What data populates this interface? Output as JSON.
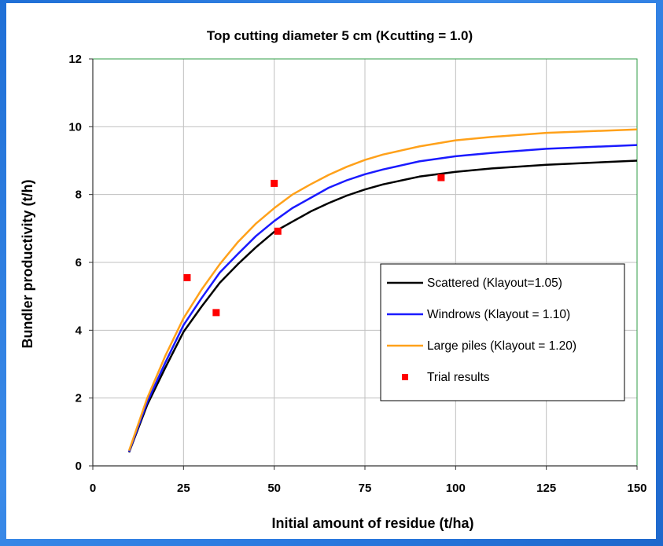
{
  "chart_data": {
    "type": "line",
    "title": "Top cutting diameter 5 cm (Kcutting = 1.0)",
    "xlabel": "Initial amount of residue (t/ha)",
    "ylabel": "Bundler productivity (t/h)",
    "xlim": [
      0,
      150
    ],
    "ylim": [
      0,
      12
    ],
    "xticks": [
      0,
      25,
      50,
      75,
      100,
      125,
      150
    ],
    "yticks": [
      0,
      2,
      4,
      6,
      8,
      10,
      12
    ],
    "grid": true,
    "legend_position": "center-right",
    "series": [
      {
        "name": "Scattered (Klayout=1.05)",
        "kind": "line",
        "color": "#000000",
        "x": [
          10,
          15,
          20,
          25,
          30,
          35,
          40,
          45,
          50,
          55,
          60,
          65,
          70,
          75,
          80,
          90,
          100,
          110,
          125,
          150
        ],
        "y": [
          0.4,
          1.8,
          2.9,
          3.95,
          4.7,
          5.4,
          5.95,
          6.45,
          6.9,
          7.2,
          7.5,
          7.75,
          7.97,
          8.15,
          8.3,
          8.53,
          8.67,
          8.77,
          8.88,
          9.0
        ]
      },
      {
        "name": "Windrows (Klayout = 1.10)",
        "kind": "line",
        "color": "#1a1aff",
        "x": [
          10,
          15,
          20,
          25,
          30,
          35,
          40,
          45,
          50,
          55,
          60,
          65,
          70,
          75,
          80,
          90,
          100,
          110,
          125,
          150
        ],
        "y": [
          0.42,
          1.88,
          3.05,
          4.15,
          4.95,
          5.7,
          6.25,
          6.78,
          7.22,
          7.6,
          7.9,
          8.2,
          8.42,
          8.6,
          8.74,
          8.98,
          9.13,
          9.23,
          9.35,
          9.46
        ]
      },
      {
        "name": "Large piles (Klayout = 1.20)",
        "kind": "line",
        "color": "#ffa11a",
        "x": [
          10,
          15,
          20,
          25,
          30,
          35,
          40,
          45,
          50,
          55,
          60,
          65,
          70,
          75,
          80,
          90,
          100,
          110,
          125,
          150
        ],
        "y": [
          0.45,
          2.0,
          3.25,
          4.35,
          5.2,
          5.95,
          6.6,
          7.15,
          7.6,
          8.0,
          8.3,
          8.58,
          8.82,
          9.02,
          9.18,
          9.42,
          9.6,
          9.7,
          9.82,
          9.92
        ]
      },
      {
        "name": "Trial results",
        "kind": "scatter",
        "color": "#ff0000",
        "x": [
          26,
          34,
          50,
          51,
          96
        ],
        "y": [
          5.55,
          4.52,
          8.33,
          6.92,
          8.5
        ]
      }
    ]
  }
}
